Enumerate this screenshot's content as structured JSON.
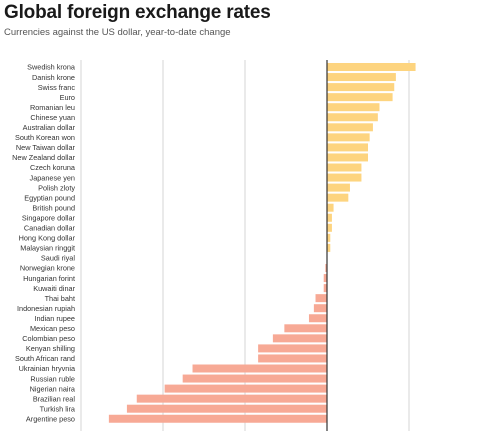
{
  "header": {
    "title": "Global foreign exchange rates",
    "subtitle": "Currencies against the US dollar, year-to-date change"
  },
  "colors": {
    "positive": "#fdd47f",
    "negative": "#f7a995",
    "axis": "#333333",
    "grid": "#d4d4d4"
  },
  "chart_data": {
    "type": "bar",
    "orientation": "horizontal",
    "title": "Global foreign exchange rates",
    "subtitle": "Currencies against the US dollar, year-to-date change",
    "xlim": [
      -21,
      10
    ],
    "grid": true,
    "gridlines_x": [
      -20,
      -15,
      -10,
      -5,
      0,
      5
    ],
    "categories": [
      "Swedish krona",
      "Danish krone",
      "Swiss franc",
      "Euro",
      "Romanian leu",
      "Chinese yuan",
      "Australian dollar",
      "South Korean won",
      "New Taiwan dollar",
      "New Zealand dollar",
      "Czech koruna",
      "Japanese yen",
      "Polish zloty",
      "Egyptian pound",
      "British pound",
      "Singapore dollar",
      "Canadian dollar",
      "Hong Kong dollar",
      "Malaysian ringgit",
      "Saudi riyal",
      "Norwegian krone",
      "Hungarian forint",
      "Kuwaiti dinar",
      "Thai baht",
      "Indonesian rupiah",
      "Indian rupee",
      "Mexican peso",
      "Colombian peso",
      "Kenyan shilling",
      "South African rand",
      "Ukrainian hryvnia",
      "Russian ruble",
      "Nigerian naira",
      "Brazilian real",
      "Turkish lira",
      "Argentine peso"
    ],
    "values": [
      5.4,
      4.2,
      4.1,
      4.0,
      3.2,
      3.1,
      2.8,
      2.6,
      2.5,
      2.5,
      2.1,
      2.1,
      1.4,
      1.3,
      0.4,
      0.3,
      0.3,
      0.2,
      0.2,
      0.0,
      -0.1,
      -0.2,
      -0.2,
      -0.7,
      -0.8,
      -1.1,
      -2.6,
      -3.3,
      -4.2,
      -4.2,
      -8.2,
      -8.8,
      -9.9,
      -11.6,
      -12.2,
      -13.3
    ]
  }
}
